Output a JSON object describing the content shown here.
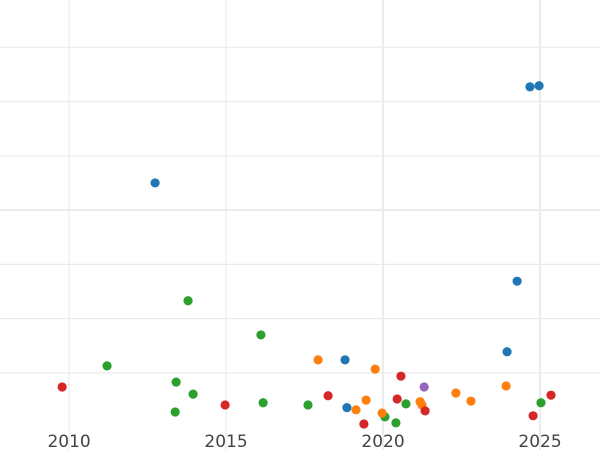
{
  "chart_data": {
    "type": "scatter",
    "title": "",
    "xlabel": "",
    "ylabel": "",
    "xlim": [
      2007.8,
      2026.91
    ],
    "ylim": [
      -0.42,
      7.87
    ],
    "grid": true,
    "x_ticks": [
      2010,
      2015,
      2020,
      2025
    ],
    "x_tick_labels": [
      "2010",
      "2015",
      "2020",
      "2025"
    ],
    "y_gridlines": [
      1,
      2,
      3,
      4,
      5,
      6,
      7
    ],
    "y_tick_labels_shown": false,
    "legend": "none",
    "series": [
      {
        "color": "#1f77b4",
        "points": [
          [
            2012.74,
            4.5
          ],
          [
            2024.68,
            6.27
          ],
          [
            2024.97,
            6.29
          ],
          [
            2024.27,
            2.69
          ],
          [
            2023.95,
            1.39
          ],
          [
            2018.79,
            1.24
          ],
          [
            2018.85,
            0.36
          ]
        ]
      },
      {
        "color": "#2ca02c",
        "points": [
          [
            2013.79,
            2.33
          ],
          [
            2011.21,
            1.13
          ],
          [
            2013.41,
            0.83
          ],
          [
            2013.95,
            0.61
          ],
          [
            2013.38,
            0.28
          ],
          [
            2016.11,
            1.7
          ],
          [
            2016.18,
            0.45
          ],
          [
            2017.61,
            0.41
          ],
          [
            2020.06,
            0.19
          ],
          [
            2020.73,
            0.43
          ],
          [
            2020.41,
            0.08
          ],
          [
            2025.03,
            0.45
          ]
        ]
      },
      {
        "color": "#ff7f0e",
        "points": [
          [
            2017.93,
            1.24
          ],
          [
            2019.75,
            1.07
          ],
          [
            2019.14,
            0.32
          ],
          [
            2019.46,
            0.5
          ],
          [
            2019.97,
            0.26
          ],
          [
            2021.18,
            0.47
          ],
          [
            2021.24,
            0.41
          ],
          [
            2022.32,
            0.63
          ],
          [
            2022.8,
            0.48
          ],
          [
            2023.92,
            0.76
          ]
        ]
      },
      {
        "color": "#d62728",
        "points": [
          [
            2009.78,
            0.74
          ],
          [
            2014.97,
            0.41
          ],
          [
            2018.25,
            0.58
          ],
          [
            2019.39,
            0.06
          ],
          [
            2020.57,
            0.94
          ],
          [
            2020.45,
            0.52
          ],
          [
            2021.34,
            0.3
          ],
          [
            2024.78,
            0.21
          ],
          [
            2025.35,
            0.59
          ]
        ]
      },
      {
        "color": "#9467bd",
        "points": [
          [
            2021.31,
            0.74
          ]
        ]
      }
    ]
  }
}
